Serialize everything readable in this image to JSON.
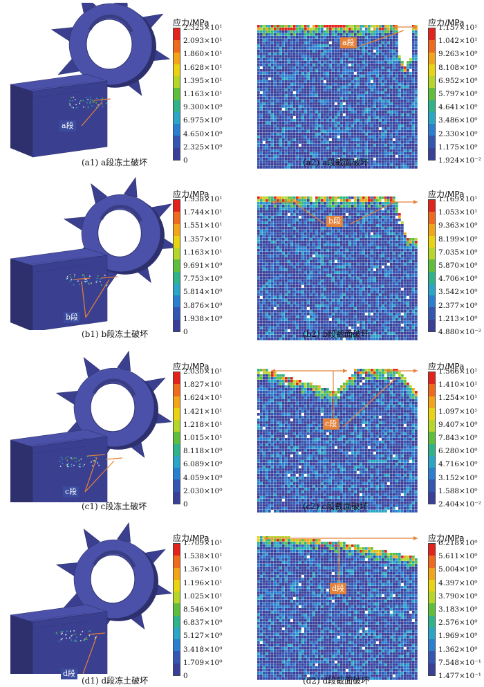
{
  "figure": {
    "rows": [
      {
        "id": "a",
        "left_caption": "(a1) a段冻土破坏",
        "right_caption": "(a2) a段截面破坏",
        "left_callout": "a段",
        "right_callout": "a段",
        "left_legend": {
          "title": "应力/MPa",
          "labels": [
            "2.325×10¹",
            "2.093×10¹",
            "1.860×10¹",
            "1.628×10¹",
            "1.395×10¹",
            "1.163×10¹",
            "9.300×10⁰",
            "6.975×10⁰",
            "4.650×10⁰",
            "2.325×10⁰",
            "0"
          ]
        },
        "right_legend": {
          "title": "应力/MPa",
          "labels": [
            "1.157×10¹",
            "1.042×10¹",
            "9.263×10⁰",
            "8.108×10⁰",
            "6.952×10⁰",
            "5.797×10⁰",
            "4.641×10⁰",
            "3.486×10⁰",
            "2.330×10⁰",
            "1.175×10⁰",
            "1.924×10⁻²"
          ]
        }
      },
      {
        "id": "b",
        "left_caption": "(b1) b段冻土破坏",
        "right_caption": "(b2) b段截面破坏",
        "left_callout": "b段",
        "right_callout": "b段",
        "left_legend": {
          "title": "应力/MPa",
          "labels": [
            "1.938×10¹",
            "1.744×10¹",
            "1.551×10¹",
            "1.357×10¹",
            "1.163×10¹",
            "9.691×10⁰",
            "7.753×10⁰",
            "5.814×10⁰",
            "3.876×10⁰",
            "1.938×10⁰",
            "0"
          ]
        },
        "right_legend": {
          "title": "应力/MPa",
          "labels": [
            "1.169×10¹",
            "1.053×10¹",
            "9.363×10⁰",
            "8.199×10⁰",
            "7.035×10⁰",
            "5.870×10⁰",
            "4.706×10⁰",
            "3.542×10⁰",
            "2.377×10⁰",
            "1.213×10⁰",
            "4.880×10⁻²"
          ]
        }
      },
      {
        "id": "c",
        "left_caption": "(c1) c段冻土破坏",
        "right_caption": "(c2) c段截面破坏",
        "left_callout": "c段",
        "right_callout": "c段",
        "left_legend": {
          "title": "应力/MPa",
          "labels": [
            "2.030×10¹",
            "1.827×10¹",
            "1.624×10¹",
            "1.421×10¹",
            "1.218×10¹",
            "1.015×10¹",
            "8.118×10⁰",
            "6.089×10⁰",
            "4.059×10⁰",
            "2.030×10⁰",
            "0"
          ]
        },
        "right_legend": {
          "title": "应力/MPa",
          "labels": [
            "1.566×10¹",
            "1.410×10¹",
            "1.254×10¹",
            "1.097×10¹",
            "9.407×10⁰",
            "7.843×10⁰",
            "6.280×10⁰",
            "4.716×10⁰",
            "3.152×10⁰",
            "1.588×10⁰",
            "2.404×10⁻²"
          ]
        }
      },
      {
        "id": "d",
        "left_caption": "(d1) d段冻土破坏",
        "right_caption": "(d2) d段截面破坏",
        "left_callout": "d段",
        "right_callout": "d段",
        "left_legend": {
          "title": "应力/MPa",
          "labels": [
            "1.709×10¹",
            "1.538×10¹",
            "1.367×10¹",
            "1.196×10¹",
            "1.025×10¹",
            "8.546×10⁰",
            "6.837×10⁰",
            "5.127×10⁰",
            "3.418×10⁰",
            "1.709×10⁰",
            "0"
          ]
        },
        "right_legend": {
          "title": "应力/MPa",
          "labels": [
            "6.218×10⁰",
            "5.611×10⁰",
            "5.004×10⁰",
            "4.397×10⁰",
            "3.790×10⁰",
            "3.183×10⁰",
            "2.576×10⁰",
            "1.969×10⁰",
            "1.362×10⁰",
            "7.548×10⁻¹",
            "1.477×10⁻¹"
          ]
        }
      }
    ],
    "colors": {
      "legend": [
        "#e3221c",
        "#f06a1d",
        "#f2a518",
        "#e9d312",
        "#b6d62a",
        "#5fbf3c",
        "#2fb38a",
        "#2aa6c6",
        "#2a7fd0",
        "#3456b3",
        "#3a3f99"
      ],
      "model": "#3b3f8f",
      "model_dark": "#2d306d",
      "model_light": "#4b51a8",
      "callout": "#e4823a",
      "arrow": "#e4823a"
    }
  }
}
